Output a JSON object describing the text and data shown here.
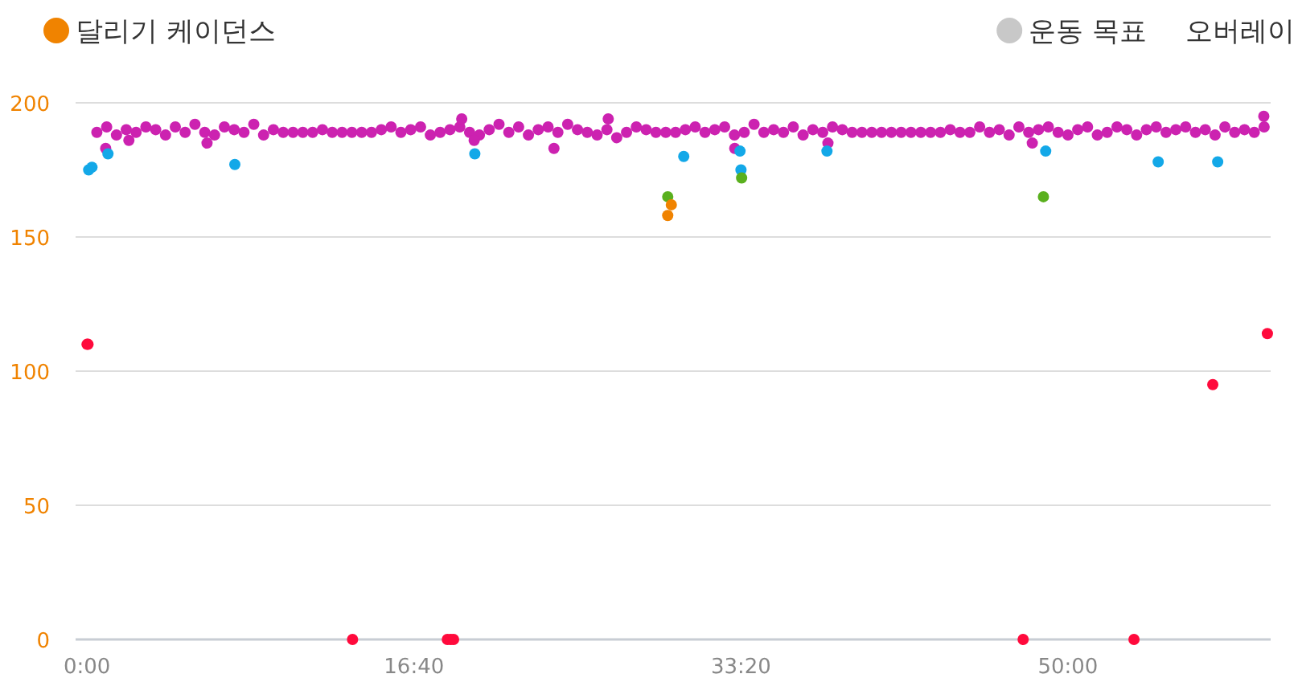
{
  "chart_data": {
    "type": "scatter",
    "marker": "circle",
    "grid": "y",
    "legend": "top",
    "annotations": [
      "오버레이"
    ],
    "xlim": [
      -35,
      3620
    ],
    "ylim": [
      0,
      200
    ],
    "xticks": [
      {
        "value": 0,
        "label": "0:00"
      },
      {
        "value": 1000,
        "label": "16:40"
      },
      {
        "value": 2000,
        "label": "33:20"
      },
      {
        "value": 3000,
        "label": "50:00"
      }
    ],
    "yticks": [
      0,
      50,
      100,
      150,
      200
    ],
    "x": [
      30,
      60,
      90,
      120,
      150,
      180,
      210,
      240,
      270,
      300,
      330,
      360,
      390,
      420,
      450,
      480,
      510,
      540,
      570,
      600,
      630,
      660,
      690,
      720,
      750,
      780,
      810,
      840,
      870,
      900,
      930,
      960,
      990,
      1020,
      1050,
      1080,
      1110,
      1140,
      1170,
      1200,
      1230,
      1260,
      1290,
      1320,
      1350,
      1380,
      1410,
      1440,
      1470,
      1500,
      1530,
      1560,
      1590,
      1620,
      1650,
      1680,
      1710,
      1740,
      1770,
      1800,
      1830,
      1860,
      1890,
      1920,
      1950,
      1980,
      2010,
      2040,
      2070,
      2100,
      2130,
      2160,
      2190,
      2220,
      2250,
      2280,
      2310,
      2340,
      2370,
      2400,
      2430,
      2460,
      2490,
      2520,
      2550,
      2580,
      2610,
      2640,
      2670,
      2700,
      2730,
      2760,
      2790,
      2820,
      2850,
      2880,
      2910,
      2940,
      2970,
      3000,
      3030,
      3060,
      3090,
      3120,
      3150,
      3180,
      3210,
      3240,
      3270,
      3300,
      3330,
      3360,
      3390,
      3420,
      3450,
      3480,
      3510,
      3540,
      3570,
      3600,
      57,
      128,
      367,
      1146,
      1184,
      1428,
      1594,
      1981,
      2266,
      2891,
      3599,
      5,
      15,
      64,
      452,
      1186,
      1825,
      1997,
      2000,
      2263,
      2932,
      3276,
      3458,
      1776,
      2002,
      2925,
      1787,
      1776,
      0,
      3,
      812,
      1102,
      1112,
      1121,
      2863,
      3202,
      3443,
      3610
    ],
    "series": [
      {
        "name": "달리기 케이던스",
        "color": "#f08300",
        "values": [
          189,
          191,
          188,
          190,
          189,
          191,
          190,
          188,
          191,
          189,
          192,
          189,
          188,
          191,
          190,
          189,
          192,
          188,
          190,
          189,
          189,
          189,
          189,
          190,
          189,
          189,
          189,
          189,
          189,
          190,
          191,
          189,
          190,
          191,
          188,
          189,
          190,
          191,
          189,
          188,
          190,
          192,
          189,
          191,
          188,
          190,
          191,
          189,
          192,
          190,
          189,
          188,
          190,
          187,
          189,
          191,
          190,
          189,
          189,
          189,
          190,
          191,
          189,
          190,
          191,
          188,
          189,
          192,
          189,
          190,
          189,
          191,
          188,
          190,
          189,
          191,
          190,
          189,
          189,
          189,
          189,
          189,
          189,
          189,
          189,
          189,
          189,
          190,
          189,
          189,
          191,
          189,
          190,
          188,
          191,
          189,
          190,
          191,
          189,
          188,
          190,
          191,
          188,
          189,
          191,
          190,
          188,
          190,
          191,
          189,
          190,
          191,
          189,
          190,
          188,
          191,
          189,
          190,
          189,
          191,
          183,
          186,
          185,
          194,
          186,
          183,
          194,
          183,
          185,
          185,
          195,
          175,
          176,
          181,
          177,
          181,
          180,
          182,
          175,
          182,
          182,
          178,
          178,
          165,
          172,
          165,
          162,
          158,
          110,
          110,
          0,
          0,
          0,
          0,
          0,
          0,
          95,
          114
        ],
        "colors": [
          "#cc22b0",
          "#cc22b0",
          "#cc22b0",
          "#cc22b0",
          "#cc22b0",
          "#cc22b0",
          "#cc22b0",
          "#cc22b0",
          "#cc22b0",
          "#cc22b0",
          "#cc22b0",
          "#cc22b0",
          "#cc22b0",
          "#cc22b0",
          "#cc22b0",
          "#cc22b0",
          "#cc22b0",
          "#cc22b0",
          "#cc22b0",
          "#cc22b0",
          "#cc22b0",
          "#cc22b0",
          "#cc22b0",
          "#cc22b0",
          "#cc22b0",
          "#cc22b0",
          "#cc22b0",
          "#cc22b0",
          "#cc22b0",
          "#cc22b0",
          "#cc22b0",
          "#cc22b0",
          "#cc22b0",
          "#cc22b0",
          "#cc22b0",
          "#cc22b0",
          "#cc22b0",
          "#cc22b0",
          "#cc22b0",
          "#cc22b0",
          "#cc22b0",
          "#cc22b0",
          "#cc22b0",
          "#cc22b0",
          "#cc22b0",
          "#cc22b0",
          "#cc22b0",
          "#cc22b0",
          "#cc22b0",
          "#cc22b0",
          "#cc22b0",
          "#cc22b0",
          "#cc22b0",
          "#cc22b0",
          "#cc22b0",
          "#cc22b0",
          "#cc22b0",
          "#cc22b0",
          "#cc22b0",
          "#cc22b0",
          "#cc22b0",
          "#cc22b0",
          "#cc22b0",
          "#cc22b0",
          "#cc22b0",
          "#cc22b0",
          "#cc22b0",
          "#cc22b0",
          "#cc22b0",
          "#cc22b0",
          "#cc22b0",
          "#cc22b0",
          "#cc22b0",
          "#cc22b0",
          "#cc22b0",
          "#cc22b0",
          "#cc22b0",
          "#cc22b0",
          "#cc22b0",
          "#cc22b0",
          "#cc22b0",
          "#cc22b0",
          "#cc22b0",
          "#cc22b0",
          "#cc22b0",
          "#cc22b0",
          "#cc22b0",
          "#cc22b0",
          "#cc22b0",
          "#cc22b0",
          "#cc22b0",
          "#cc22b0",
          "#cc22b0",
          "#cc22b0",
          "#cc22b0",
          "#cc22b0",
          "#cc22b0",
          "#cc22b0",
          "#cc22b0",
          "#cc22b0",
          "#cc22b0",
          "#cc22b0",
          "#cc22b0",
          "#cc22b0",
          "#cc22b0",
          "#cc22b0",
          "#cc22b0",
          "#cc22b0",
          "#cc22b0",
          "#cc22b0",
          "#cc22b0",
          "#cc22b0",
          "#cc22b0",
          "#cc22b0",
          "#cc22b0",
          "#cc22b0",
          "#cc22b0",
          "#cc22b0",
          "#cc22b0",
          "#cc22b0",
          "#cc22b0",
          "#cc22b0",
          "#cc22b0",
          "#cc22b0",
          "#cc22b0",
          "#cc22b0",
          "#cc22b0",
          "#cc22b0",
          "#cc22b0",
          "#cc22b0",
          "#cc22b0",
          "#13a8e8",
          "#13a8e8",
          "#13a8e8",
          "#13a8e8",
          "#13a8e8",
          "#13a8e8",
          "#13a8e8",
          "#13a8e8",
          "#13a8e8",
          "#13a8e8",
          "#13a8e8",
          "#13a8e8",
          "#5ab01e",
          "#5ab01e",
          "#5ab01e",
          "#f08300",
          "#f08300",
          "#ff0a3c",
          "#ff0a3c",
          "#ff0a3c",
          "#ff0a3c",
          "#ff0a3c",
          "#ff0a3c",
          "#ff0a3c",
          "#ff0a3c",
          "#ff0a3c",
          "#ff0a3c"
        ]
      },
      {
        "name": "운동 목표",
        "color": "#c8c8c8",
        "values": [
          null,
          null,
          null,
          null,
          null,
          null,
          null,
          null,
          null,
          null,
          null,
          null,
          null,
          null,
          null,
          null,
          null,
          null,
          null,
          null,
          null,
          null,
          null,
          null,
          null,
          null,
          null,
          null,
          null,
          null,
          null,
          null,
          null,
          null,
          null,
          null,
          null,
          null,
          null,
          null,
          null,
          null,
          null,
          null,
          null,
          null,
          null,
          null,
          null,
          null,
          null,
          null,
          null,
          null,
          null,
          null,
          null,
          null,
          null,
          null,
          null,
          null,
          null,
          null,
          null,
          null,
          null,
          null,
          null,
          null,
          null,
          null,
          null,
          null,
          null,
          null,
          null,
          null,
          null,
          null,
          null,
          null,
          null,
          null,
          null,
          null,
          null,
          null,
          null,
          null,
          null,
          null,
          null,
          null,
          null,
          null,
          null,
          null,
          null,
          null,
          null,
          null,
          null,
          null,
          null,
          null,
          null,
          null,
          null,
          null,
          null,
          null,
          null,
          null,
          null,
          null,
          null,
          null,
          null,
          null,
          null,
          null,
          null,
          null,
          null,
          null,
          null,
          null,
          null,
          null,
          null,
          null,
          null,
          null,
          null,
          null,
          null,
          null,
          null,
          null,
          null,
          null,
          null,
          null,
          null,
          null,
          null,
          null,
          null,
          null,
          null,
          null,
          null,
          null,
          null,
          null,
          null,
          null
        ]
      }
    ]
  }
}
